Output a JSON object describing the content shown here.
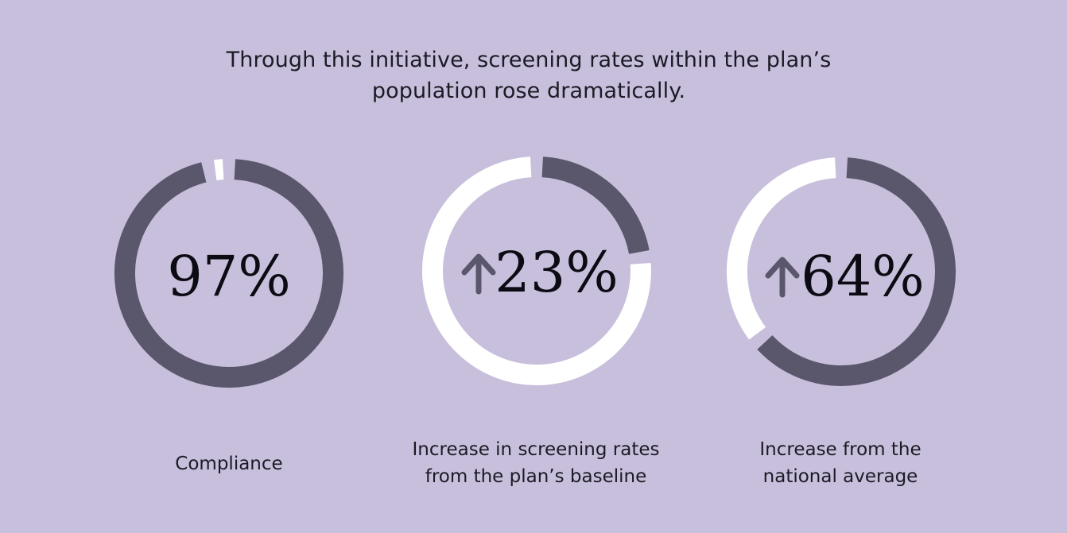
{
  "title": {
    "line1": "Through this initiative, screening rates within the plan’s",
    "line2": "population rose dramatically."
  },
  "colors": {
    "background": "#c7bfdc",
    "filled": "#5a566b",
    "empty": "#ffffff",
    "arrow": "#5a566b"
  },
  "chart_data": {
    "type": "donut",
    "items": [
      {
        "value": 97,
        "label": "97%",
        "arrow": false,
        "direction": "none",
        "caption_lines": [
          "Compliance"
        ]
      },
      {
        "value": 23,
        "label": "23%",
        "arrow": true,
        "direction": "up",
        "caption_lines": [
          "Increase in screening rates",
          "from the plan’s baseline"
        ]
      },
      {
        "value": 64,
        "label": "64%",
        "arrow": true,
        "direction": "up",
        "caption_lines": [
          "Increase from the",
          "national average"
        ]
      }
    ]
  }
}
